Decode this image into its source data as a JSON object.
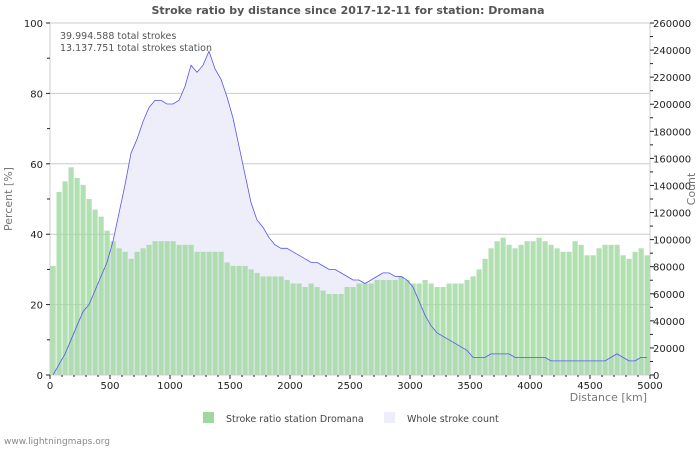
{
  "chart_data": {
    "type": "bar",
    "title": "Stroke ratio by distance since 2017-12-11 for station: Dromana",
    "annotations": [
      "39.994.588 total strokes",
      "13.137.751 total strokes station"
    ],
    "xlabel": "Distance   [km]",
    "ylabel": "Percent   [%]",
    "y2label": "Count",
    "xlim": [
      0,
      5000
    ],
    "ylim": [
      0,
      100
    ],
    "y2lim": [
      0,
      260000
    ],
    "x_ticks": [
      "0",
      "500",
      "1000",
      "1500",
      "2000",
      "2500",
      "3000",
      "3500",
      "4000",
      "4500",
      "5000"
    ],
    "y_ticks": [
      "0",
      "20",
      "40",
      "60",
      "80",
      "100"
    ],
    "y2_ticks": [
      "0",
      "20000",
      "40000",
      "60000",
      "80000",
      "100000",
      "120000",
      "140000",
      "160000",
      "180000",
      "200000",
      "220000",
      "240000",
      "260000"
    ],
    "legend": [
      "Stroke ratio station Dromana",
      "Whole stroke count"
    ],
    "legend_placement": "bottom",
    "x_step": 50,
    "series": [
      {
        "name": "Stroke ratio station Dromana",
        "type": "bar",
        "axis": "left",
        "color": "#9fd89f",
        "values": [
          31,
          52,
          55,
          59,
          56,
          54,
          50,
          47,
          45,
          41,
          38,
          36,
          35,
          33,
          35,
          36,
          37,
          38,
          38,
          38,
          38,
          37,
          37,
          37,
          35,
          35,
          35,
          35,
          35,
          32,
          31,
          31,
          31,
          30,
          29,
          28,
          28,
          28,
          28,
          27,
          26,
          26,
          25,
          26,
          25,
          24,
          23,
          23,
          23,
          25,
          25,
          26,
          26,
          26,
          27,
          27,
          27,
          27,
          28,
          27,
          26,
          26,
          27,
          26,
          25,
          25,
          26,
          26,
          26,
          27,
          28,
          30,
          33,
          36,
          38,
          39,
          37,
          36,
          37,
          38,
          38,
          39,
          38,
          37,
          36,
          35,
          35,
          38,
          37,
          34,
          34,
          36,
          37,
          37,
          37,
          34,
          33,
          35,
          36,
          34
        ]
      },
      {
        "name": "Whole stroke count",
        "type": "area",
        "axis": "right",
        "color": "#5555ee",
        "fill": "#eeeefb",
        "values": [
          0,
          7800,
          15600,
          26000,
          36400,
          46800,
          52000,
          62400,
          72800,
          83200,
          98800,
          119600,
          140400,
          163800,
          174200,
          187200,
          197600,
          202800,
          202800,
          200200,
          200200,
          202800,
          213200,
          228800,
          223600,
          228800,
          239200,
          226200,
          218400,
          205400,
          189800,
          169000,
          148200,
          127400,
          114400,
          109200,
          101400,
          96200,
          93600,
          93600,
          91000,
          88400,
          85800,
          83200,
          83200,
          80600,
          78000,
          78000,
          75400,
          72800,
          70200,
          70200,
          67600,
          70200,
          72800,
          75400,
          75400,
          72800,
          72800,
          70200,
          65000,
          54600,
          44200,
          36400,
          31200,
          28600,
          26000,
          23400,
          20800,
          18200,
          13000,
          13000,
          13000,
          15600,
          15600,
          15600,
          15600,
          13000,
          13000,
          13000,
          13000,
          13000,
          13000,
          10400,
          10400,
          10400,
          10400,
          10400,
          10400,
          10400,
          10400,
          10400,
          10400,
          13000,
          15600,
          13000,
          10400,
          10400,
          13000,
          13000
        ]
      }
    ]
  },
  "footer": "www.lightningmaps.org"
}
